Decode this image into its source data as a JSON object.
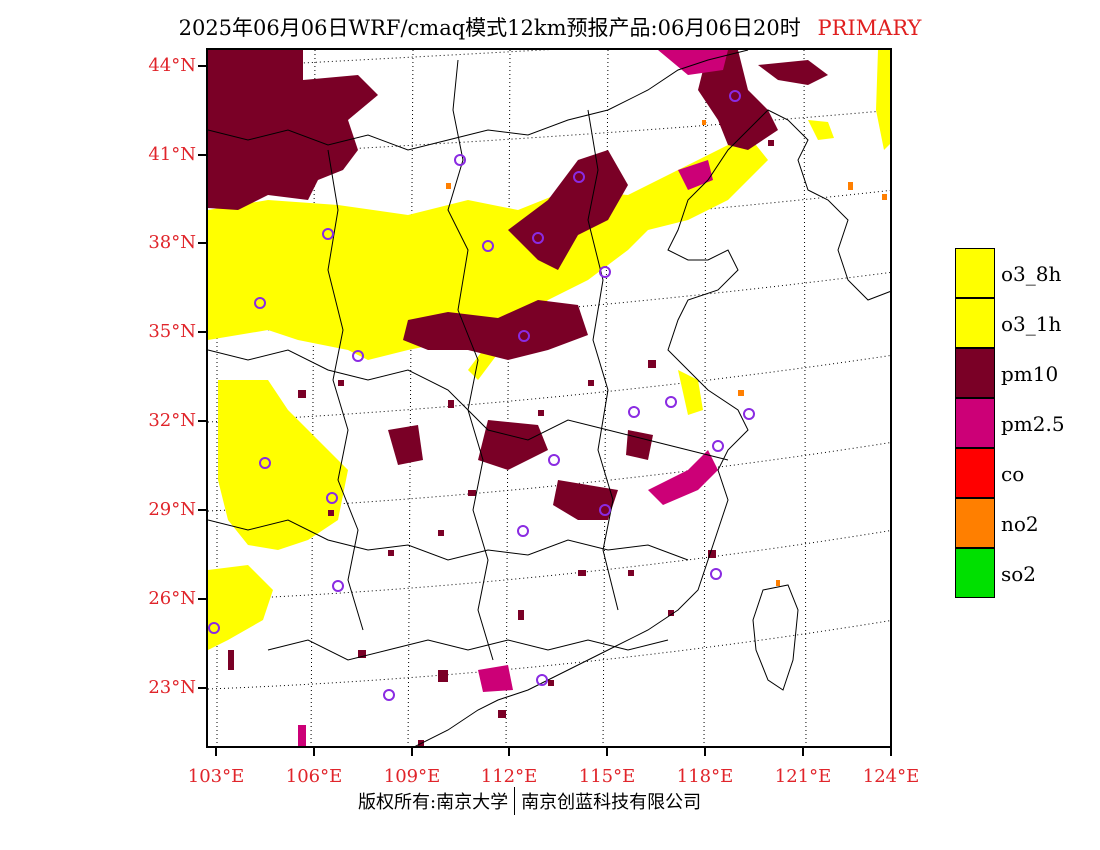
{
  "header": {
    "title": "2025年06月06日WRF/cmaq模式12km预报产品:06月06日20时",
    "tag": "PRIMARY",
    "tag_color": "#e02020"
  },
  "map": {
    "lat_labels": [
      "44°N",
      "41°N",
      "38°N",
      "35°N",
      "32°N",
      "29°N",
      "26°N",
      "23°N"
    ],
    "lon_labels": [
      "103°E",
      "106°E",
      "109°E",
      "112°E",
      "115°E",
      "118°E",
      "121°E",
      "124°E"
    ],
    "label_color": "#e0242a",
    "station_marker_color": "#8a2be2",
    "station_count": 24
  },
  "legend": {
    "items": [
      {
        "label": "o3_8h",
        "color": "#ffff00"
      },
      {
        "label": "o3_1h",
        "color": "#ffff00"
      },
      {
        "label": "pm10",
        "color": "#7a0026"
      },
      {
        "label": "pm2.5",
        "color": "#cc0077"
      },
      {
        "label": "co",
        "color": "#ff0000"
      },
      {
        "label": "no2",
        "color": "#ff7f00"
      },
      {
        "label": "so2",
        "color": "#00e000"
      }
    ]
  },
  "footer": {
    "left": "版权所有:南京大学",
    "right": "南京创蓝科技有限公司"
  }
}
